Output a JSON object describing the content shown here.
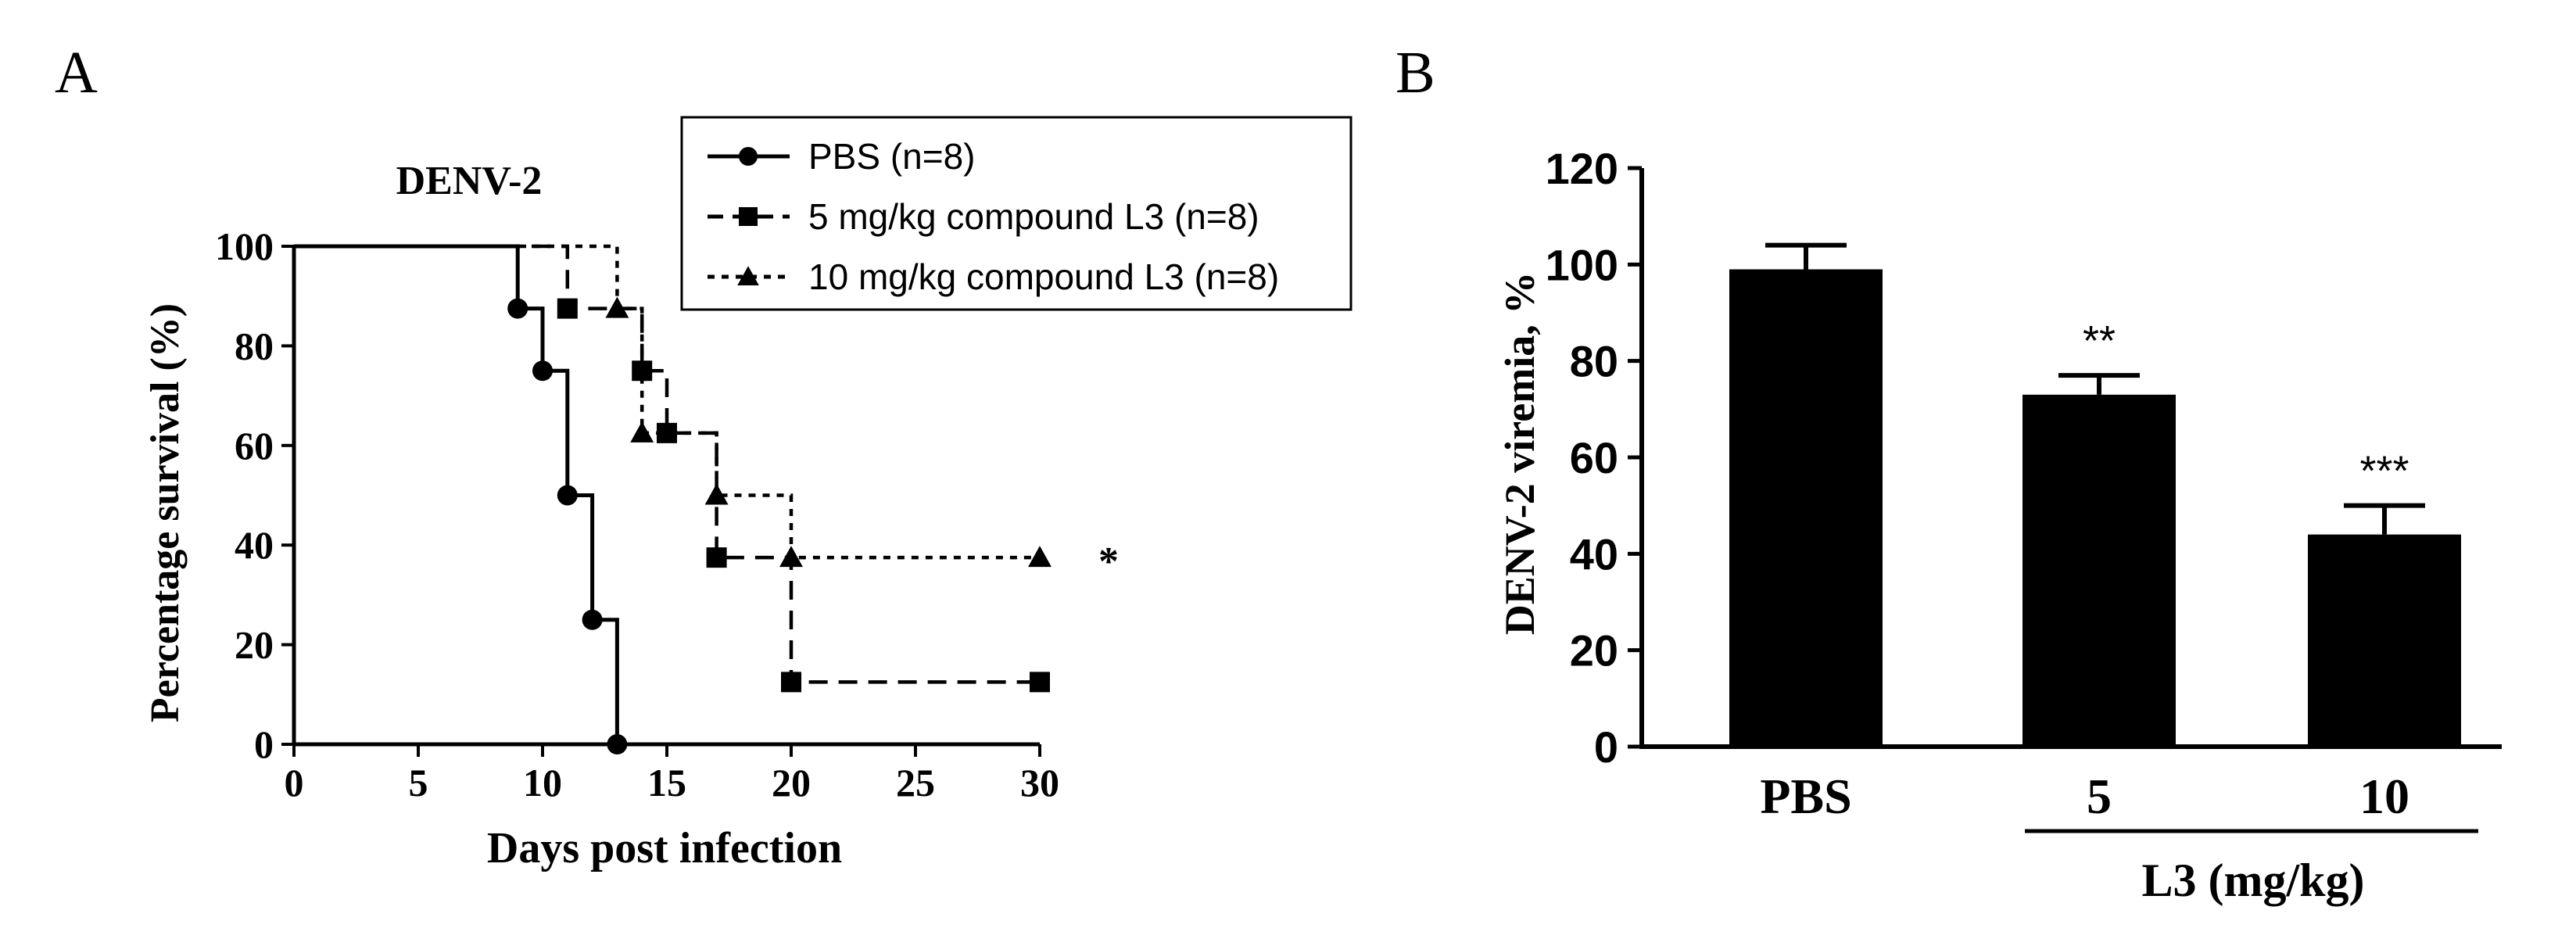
{
  "chart_data": [
    {
      "panel": "A",
      "type": "line",
      "step": true,
      "title": "DENV-2",
      "xlabel": "Days post infection",
      "ylabel": "Percentage survival (%)",
      "xlim": [
        0,
        30
      ],
      "ylim": [
        0,
        100
      ],
      "xticks": [
        0,
        5,
        10,
        15,
        20,
        25,
        30
      ],
      "yticks": [
        0,
        20,
        40,
        60,
        80,
        100
      ],
      "legend_position": "top-right",
      "annotation": "*",
      "series": [
        {
          "name": "PBS (n=8)",
          "line_style": "solid",
          "marker": "circle",
          "steps": [
            [
              0,
              100
            ],
            [
              9,
              87.5
            ],
            [
              10,
              75
            ],
            [
              11,
              50
            ],
            [
              12,
              25
            ],
            [
              13,
              0
            ]
          ],
          "markers": [
            [
              9,
              87.5
            ],
            [
              10,
              75
            ],
            [
              11,
              50
            ],
            [
              12,
              25
            ],
            [
              13,
              0
            ]
          ]
        },
        {
          "name": "5 mg/kg compound L3 (n=8)",
          "line_style": "dashed",
          "marker": "square",
          "steps": [
            [
              0,
              100
            ],
            [
              11,
              87.5
            ],
            [
              14,
              75
            ],
            [
              15,
              62.5
            ],
            [
              17,
              37.5
            ],
            [
              20,
              12.5
            ],
            [
              30,
              12.5
            ]
          ],
          "markers": [
            [
              11,
              87.5
            ],
            [
              14,
              75
            ],
            [
              15,
              62.5
            ],
            [
              17,
              37.5
            ],
            [
              20,
              12.5
            ],
            [
              30,
              12.5
            ]
          ]
        },
        {
          "name": "10 mg/kg compound L3 (n=8)",
          "line_style": "dotted",
          "marker": "triangle",
          "steps": [
            [
              0,
              100
            ],
            [
              13,
              87.5
            ],
            [
              14,
              62.5
            ],
            [
              17,
              50
            ],
            [
              20,
              37.5
            ],
            [
              30,
              37.5
            ]
          ],
          "markers": [
            [
              13,
              87.5
            ],
            [
              14,
              62.5
            ],
            [
              17,
              50
            ],
            [
              20,
              37.5
            ],
            [
              30,
              37.5
            ]
          ]
        }
      ]
    },
    {
      "panel": "B",
      "type": "bar",
      "title": "",
      "xlabel": "L3 (mg/kg)",
      "ylabel": "DENV-2 viremia, %",
      "ylim": [
        0,
        120
      ],
      "yticks": [
        0,
        20,
        40,
        60,
        80,
        100,
        120
      ],
      "categories": [
        "PBS",
        "5",
        "10"
      ],
      "values": [
        99,
        73,
        44
      ],
      "errors": [
        5,
        4,
        6
      ],
      "significance": [
        "",
        "**",
        "***"
      ],
      "bar_color": "#000000"
    }
  ]
}
